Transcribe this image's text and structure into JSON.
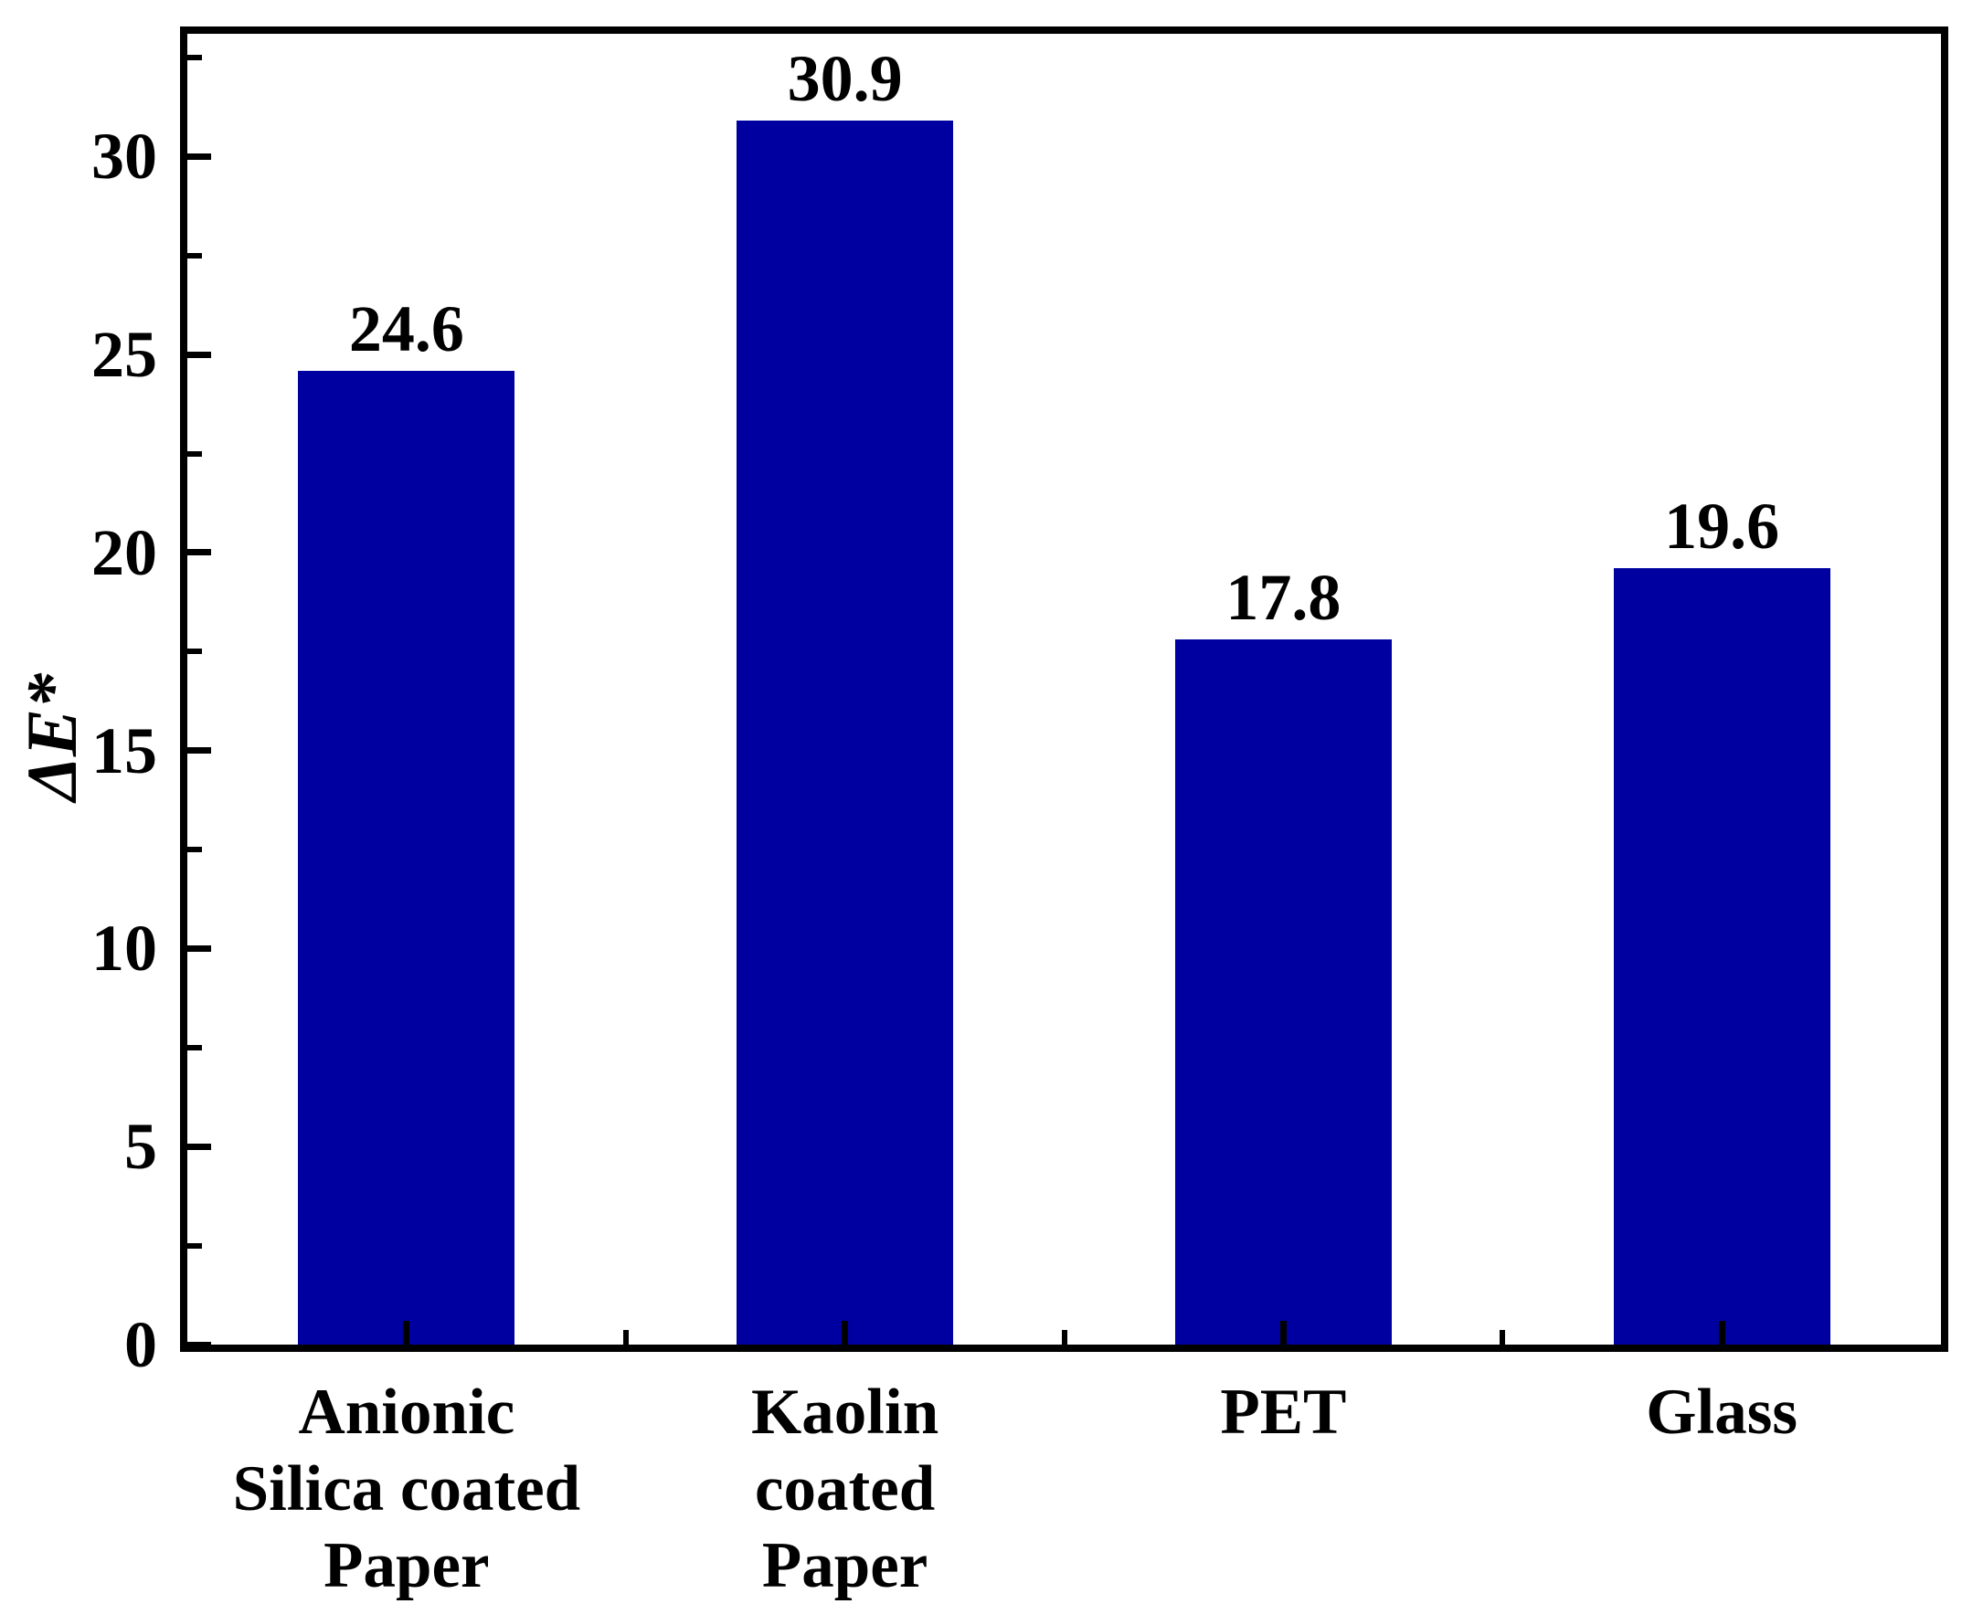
{
  "chart_data": {
    "type": "bar",
    "title": "",
    "xlabel": "",
    "ylabel": "ΔE*",
    "categories": [
      "Anionic Silica coated Paper",
      "Kaolin coated Paper",
      "PET",
      "Glass"
    ],
    "category_lines": [
      [
        "Anionic",
        "Silica coated",
        "Paper"
      ],
      [
        "Kaolin",
        "coated",
        "Paper"
      ],
      [
        "PET"
      ],
      [
        "Glass"
      ]
    ],
    "values": [
      24.6,
      30.9,
      17.8,
      19.6
    ],
    "value_labels": [
      "24.6",
      "30.9",
      "17.8",
      "19.6"
    ],
    "ylim": [
      0,
      33.1
    ],
    "yticks": [
      0,
      5,
      10,
      15,
      20,
      25,
      30
    ],
    "ytick_major_step": 5,
    "ytick_minor_step": 2.5,
    "bar_color": "#0000A0",
    "axis_color": "#000000",
    "text_color": "#000000",
    "grid": false,
    "legend": null
  }
}
